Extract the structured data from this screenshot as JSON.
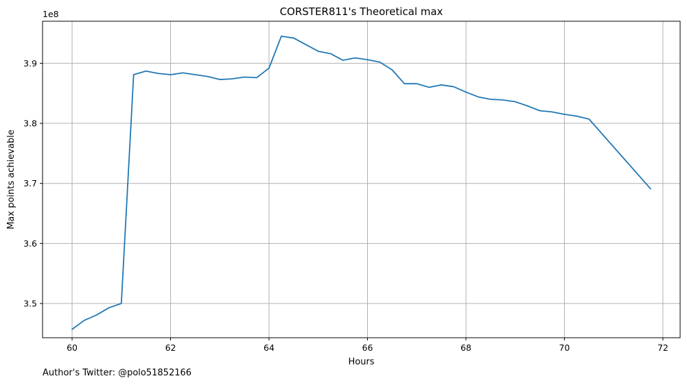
{
  "chart_data": {
    "type": "line",
    "title": "CORSTER811's Theoretical max",
    "xlabel": "Hours",
    "ylabel": "Max points achievable",
    "y_offset_label": "1e8",
    "xlim": [
      59.4,
      72.35
    ],
    "ylim": [
      3.443,
      3.97
    ],
    "x_ticks": [
      60,
      62,
      64,
      66,
      68,
      70,
      72
    ],
    "x_tick_labels": [
      "60",
      "62",
      "64",
      "66",
      "68",
      "70",
      "72"
    ],
    "y_ticks": [
      3.5,
      3.6,
      3.7,
      3.8,
      3.9
    ],
    "y_tick_labels": [
      "3.5",
      "3.6",
      "3.7",
      "3.8",
      "3.9"
    ],
    "grid": true,
    "series": [
      {
        "color": "#1f77b4",
        "x": [
          60.0,
          60.25,
          60.5,
          60.75,
          61.0,
          61.25,
          61.5,
          61.75,
          62.0,
          62.25,
          62.5,
          62.75,
          63.0,
          63.25,
          63.5,
          63.75,
          64.0,
          64.25,
          64.5,
          64.75,
          65.0,
          65.25,
          65.5,
          65.75,
          66.0,
          66.25,
          66.5,
          66.75,
          67.0,
          67.25,
          67.5,
          67.75,
          68.0,
          68.25,
          68.5,
          68.75,
          69.0,
          69.25,
          69.5,
          69.75,
          70.0,
          70.25,
          70.5,
          71.75
        ],
        "y": [
          3.457,
          3.472,
          3.481,
          3.493,
          3.5,
          3.881,
          3.887,
          3.883,
          3.881,
          3.884,
          3.881,
          3.878,
          3.873,
          3.874,
          3.877,
          3.876,
          3.892,
          3.945,
          3.942,
          3.931,
          3.92,
          3.916,
          3.905,
          3.909,
          3.906,
          3.902,
          3.889,
          3.866,
          3.866,
          3.86,
          3.864,
          3.861,
          3.852,
          3.844,
          3.84,
          3.839,
          3.836,
          3.829,
          3.821,
          3.819,
          3.815,
          3.812,
          3.807,
          3.691
        ]
      }
    ]
  },
  "footnote": "Author's Twitter: @polo51852166"
}
